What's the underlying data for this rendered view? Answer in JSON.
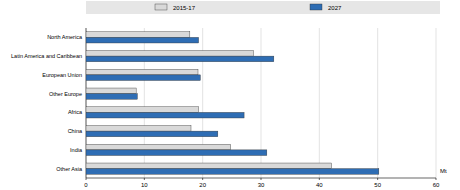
{
  "chart_data": {
    "type": "bar",
    "orientation": "horizontal",
    "categories": [
      "North America",
      "Latin America and Caribbean",
      "European Union",
      "Other Europe",
      "Africa",
      "China",
      "India",
      "Other Asia"
    ],
    "series": [
      {
        "name": "2015-17",
        "color": "#d9d9d9",
        "values": [
          17.8,
          28.7,
          19.2,
          8.6,
          19.3,
          18.0,
          24.8,
          42.1
        ]
      },
      {
        "name": "2027",
        "color": "#2e6db4",
        "values": [
          19.3,
          32.2,
          19.6,
          8.8,
          27.1,
          22.6,
          31.0,
          50.2
        ]
      }
    ],
    "xlabel": "Mt",
    "xlim": [
      0,
      60
    ],
    "xticks": [
      0,
      10,
      20,
      30,
      40,
      50,
      60
    ],
    "grid": true,
    "legend": "top"
  }
}
